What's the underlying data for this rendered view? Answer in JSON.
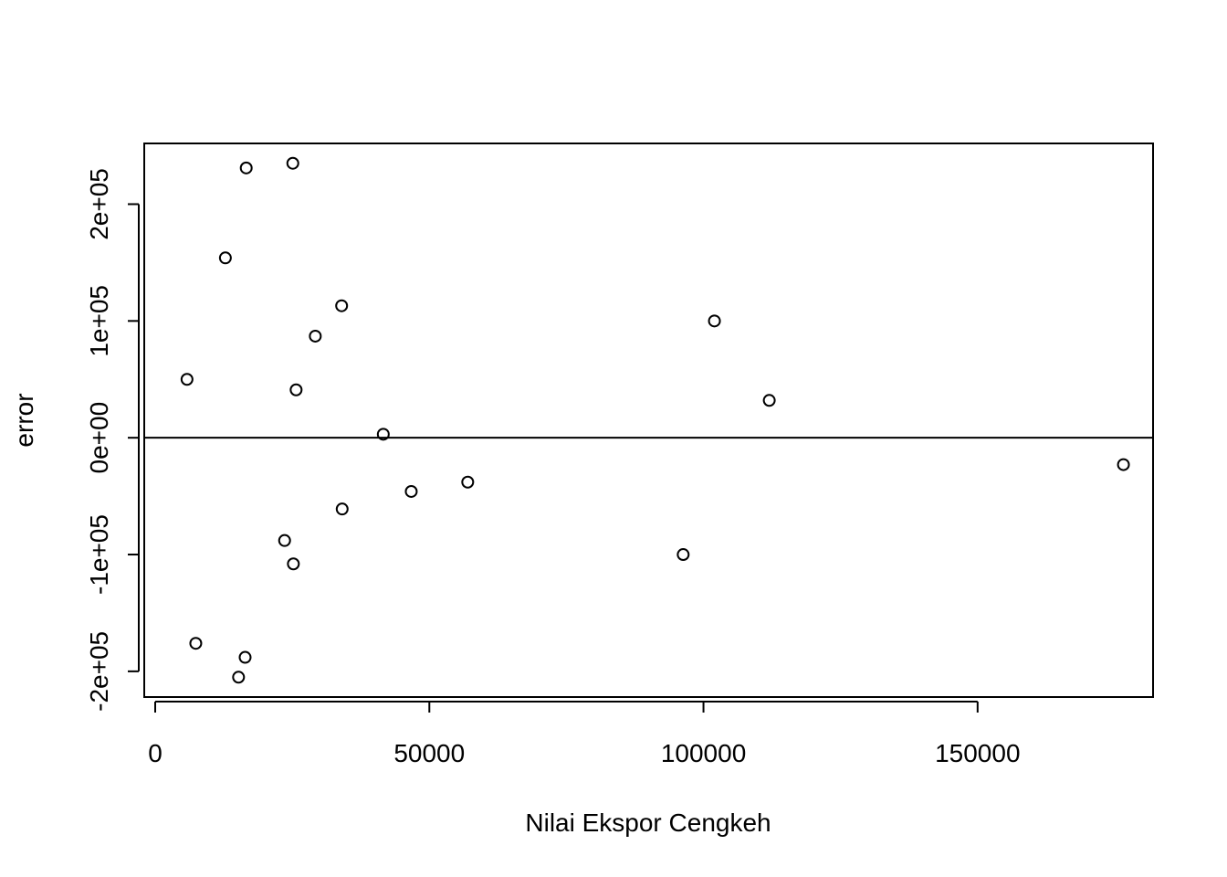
{
  "chart_data": {
    "type": "scatter",
    "title": "",
    "xlabel": "Nilai Ekspor Cengkeh",
    "ylabel": "error",
    "xlim": [
      -2000,
      182000
    ],
    "ylim": [
      -222000,
      252000
    ],
    "x_ticks": [
      0,
      50000,
      100000,
      150000
    ],
    "x_tick_labels": [
      "0",
      "50000",
      "100000",
      "150000"
    ],
    "y_ticks": [
      -200000,
      -100000,
      0,
      100000,
      200000
    ],
    "y_tick_labels": [
      "-2e+05",
      "-1e+05",
      "0e+00",
      "1e+05",
      "2e+05"
    ],
    "reference_line": {
      "y": 0
    },
    "grid": false,
    "marker": "open-circle",
    "colors": {
      "points": "#000000",
      "axes": "#000000",
      "background": "#ffffff"
    },
    "points": [
      {
        "x": 5800,
        "y": 50000
      },
      {
        "x": 7400,
        "y": -176000
      },
      {
        "x": 12800,
        "y": 154000
      },
      {
        "x": 15200,
        "y": -205000
      },
      {
        "x": 16400,
        "y": -188000
      },
      {
        "x": 16600,
        "y": 231000
      },
      {
        "x": 23600,
        "y": -88000
      },
      {
        "x": 25100,
        "y": 235000
      },
      {
        "x": 25200,
        "y": -108000
      },
      {
        "x": 25700,
        "y": 41000
      },
      {
        "x": 29200,
        "y": 87000
      },
      {
        "x": 34000,
        "y": 113000
      },
      {
        "x": 34100,
        "y": -61000
      },
      {
        "x": 41600,
        "y": 3000
      },
      {
        "x": 46700,
        "y": -46000
      },
      {
        "x": 57000,
        "y": -38000
      },
      {
        "x": 96300,
        "y": -100000
      },
      {
        "x": 102000,
        "y": 100000
      },
      {
        "x": 112000,
        "y": 32000
      },
      {
        "x": 176600,
        "y": -23000
      }
    ]
  }
}
